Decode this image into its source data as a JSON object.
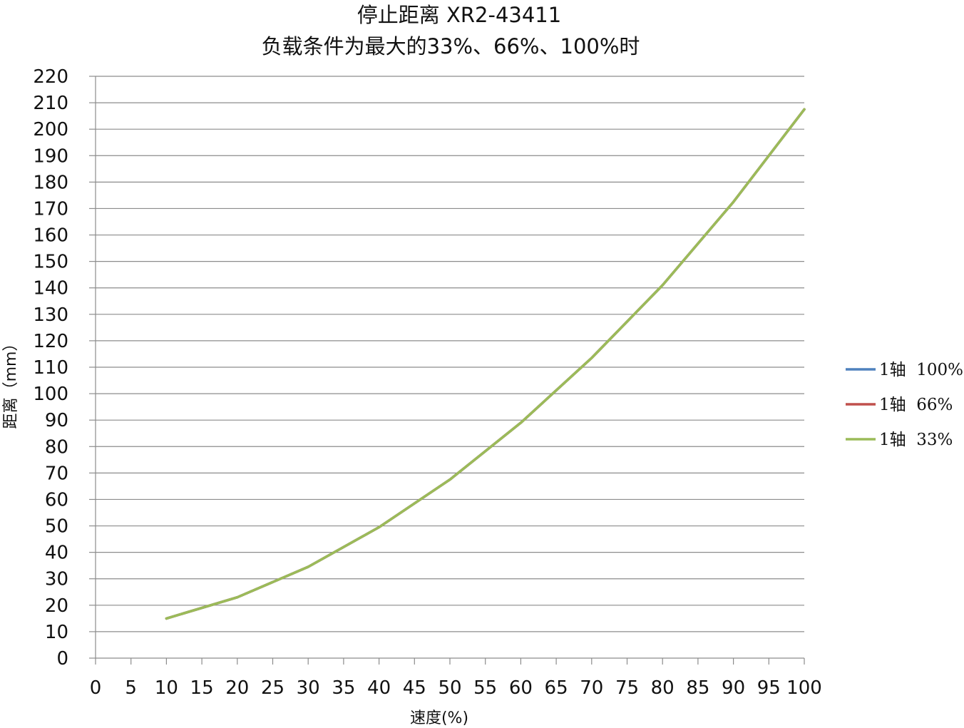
{
  "chart_data": {
    "type": "line",
    "title": "停止距离 XR2-43411",
    "subtitle": "负载条件为最大的33%、66%、100%时",
    "xlabel": "速度(%)",
    "ylabel": "距离（mm）",
    "xlim": [
      0,
      100
    ],
    "ylim": [
      0,
      220
    ],
    "x_ticks": [
      0,
      5,
      10,
      15,
      20,
      25,
      30,
      35,
      40,
      45,
      50,
      55,
      60,
      65,
      70,
      75,
      80,
      85,
      90,
      95,
      100
    ],
    "y_ticks": [
      0,
      10,
      20,
      30,
      40,
      50,
      60,
      70,
      80,
      90,
      100,
      110,
      120,
      130,
      140,
      150,
      160,
      170,
      180,
      190,
      200,
      210,
      220
    ],
    "grid": "horizontal",
    "legend_position": "right",
    "x": [
      10,
      20,
      30,
      40,
      50,
      60,
      70,
      80,
      90,
      100
    ],
    "series": [
      {
        "name": "1轴  100%",
        "color": "#4f81bd",
        "values": [
          15,
          23,
          34.5,
          49.5,
          67.5,
          89,
          113.5,
          141,
          172.5,
          207.5
        ]
      },
      {
        "name": "1轴  66%",
        "color": "#c0504d",
        "values": [
          15,
          23,
          34.5,
          49.5,
          67.5,
          89,
          113.5,
          141,
          172.5,
          207.5
        ]
      },
      {
        "name": "1轴  33%",
        "color": "#9bbb59",
        "values": [
          15,
          23,
          34.5,
          49.5,
          67.5,
          89,
          113.5,
          141,
          172.5,
          207.5
        ]
      }
    ]
  }
}
